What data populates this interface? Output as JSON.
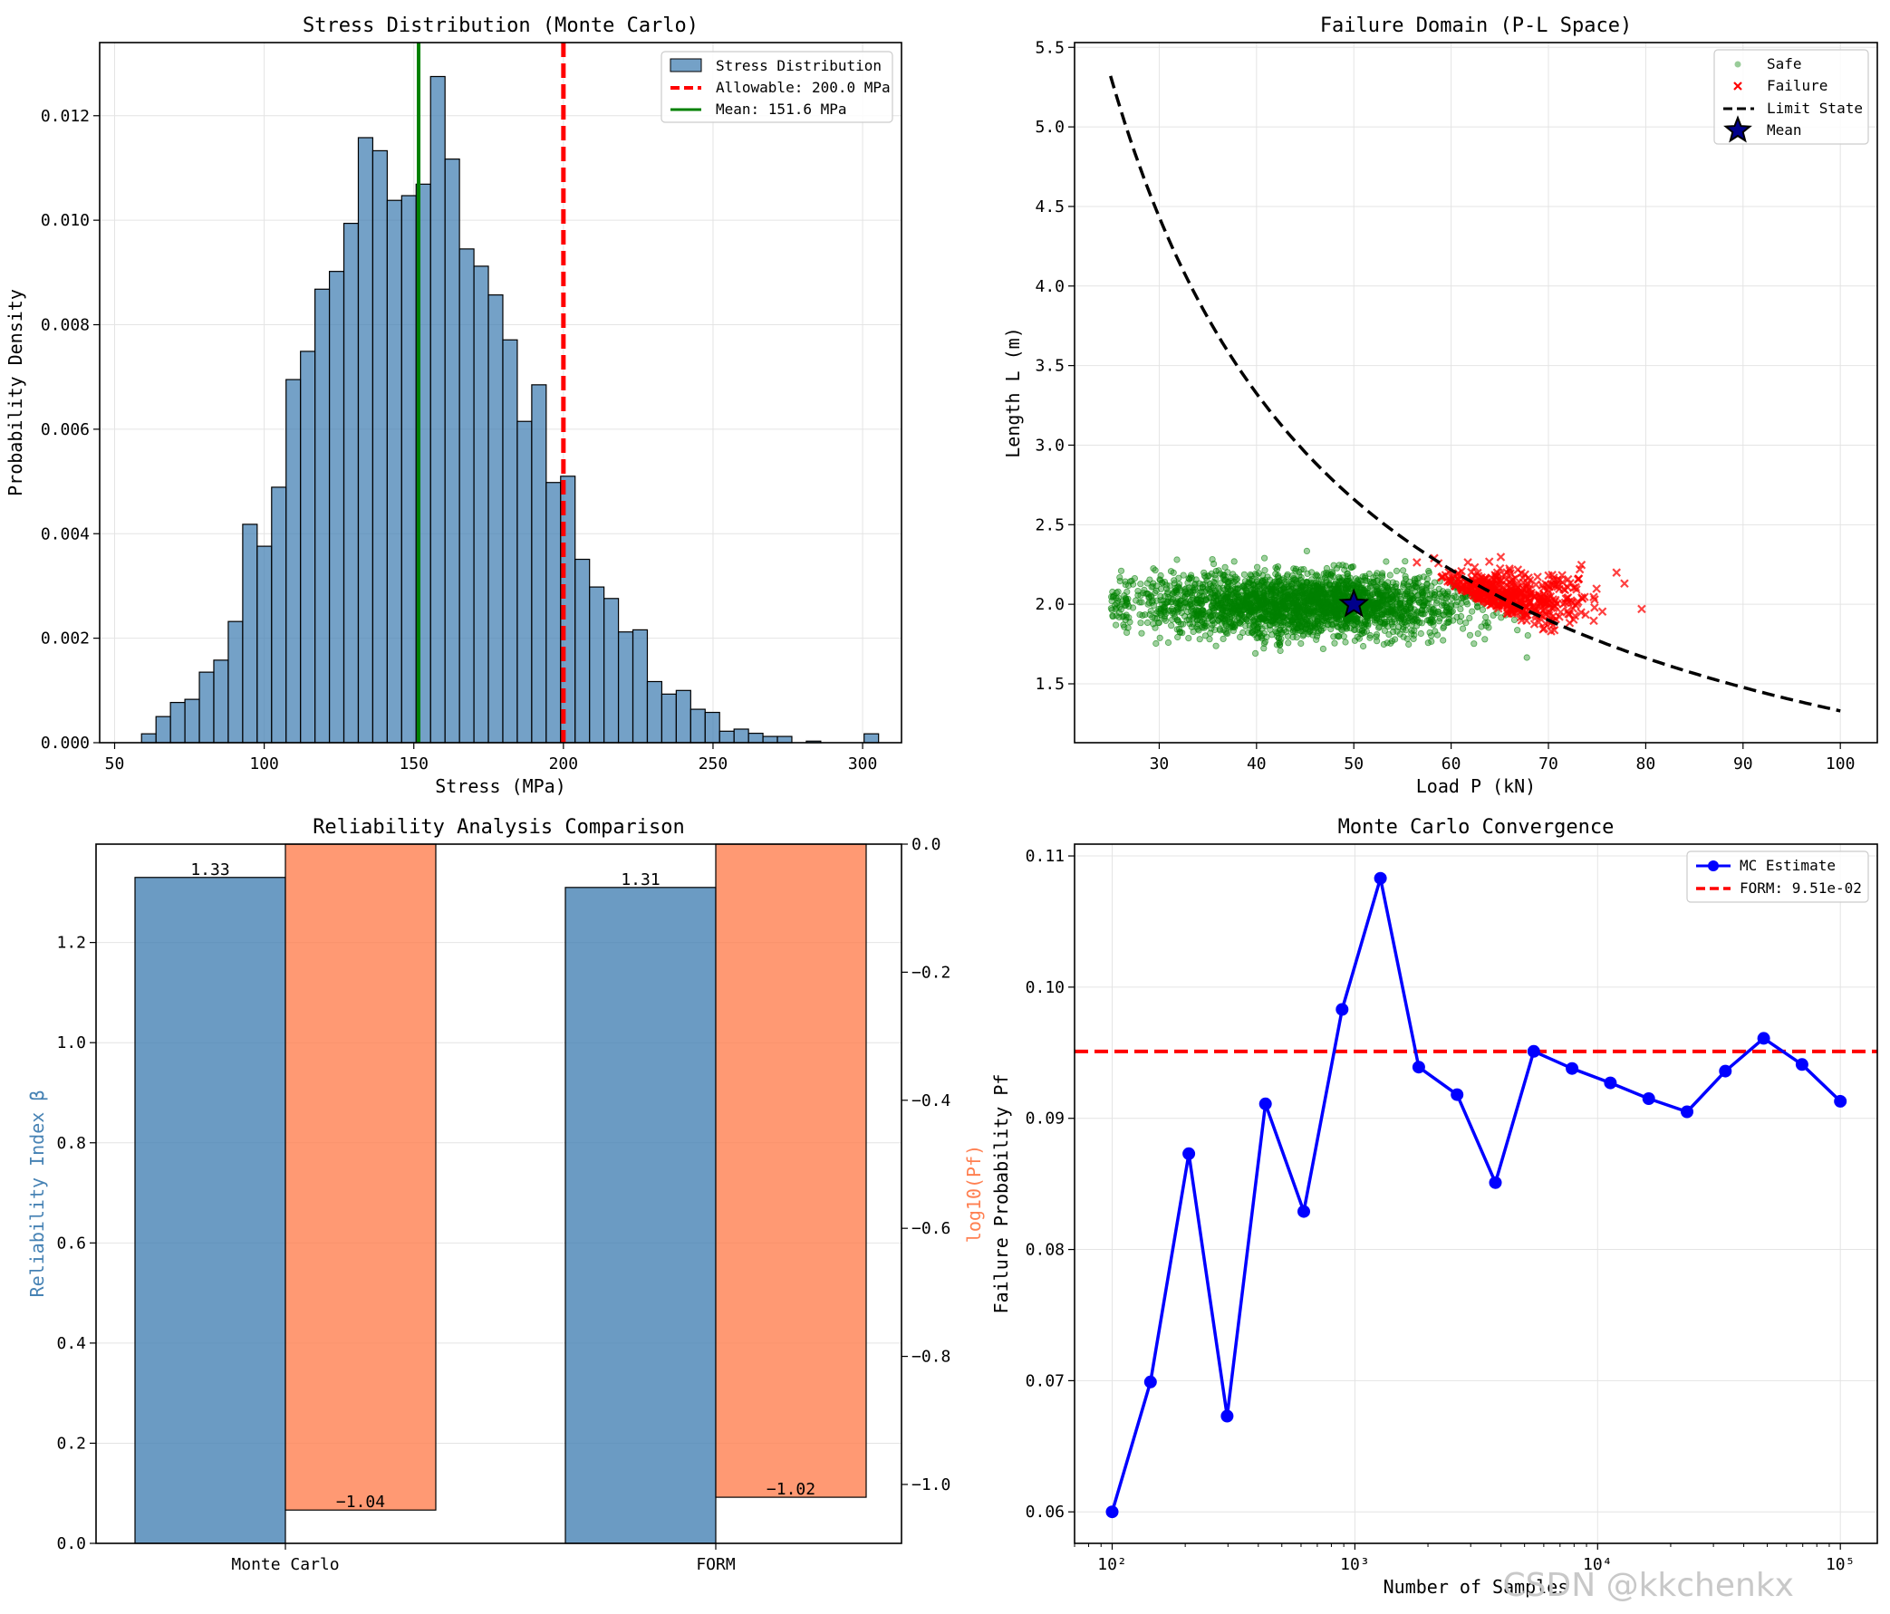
{
  "watermark": "CSDN @kkchenkx",
  "chart_data": [
    {
      "type": "bar",
      "title": "Stress Distribution (Monte Carlo)",
      "xlabel": "Stress (MPa)",
      "ylabel": "Probability Density",
      "xlim": [
        45,
        313
      ],
      "ylim": [
        0,
        0.0134
      ],
      "xticks": [
        50,
        100,
        150,
        200,
        250,
        300
      ],
      "yticks": [
        0.0,
        0.002,
        0.004,
        0.006,
        0.008,
        0.01,
        0.012
      ],
      "grid": true,
      "legend_position": "top-right",
      "bin_start": 59,
      "bin_width": 4.83,
      "values": [
        0.00017,
        0.0005,
        0.00077,
        0.00083,
        0.00135,
        0.00158,
        0.00232,
        0.00418,
        0.00376,
        0.00489,
        0.00695,
        0.00749,
        0.00868,
        0.00902,
        0.00994,
        0.01158,
        0.01133,
        0.01038,
        0.01047,
        0.01069,
        0.01275,
        0.01117,
        0.00945,
        0.00912,
        0.00857,
        0.00771,
        0.00615,
        0.00685,
        0.00498,
        0.0051,
        0.00351,
        0.00298,
        0.00276,
        0.00212,
        0.00216,
        0.00117,
        0.00093,
        0.001,
        0.00064,
        0.00058,
        0.00022,
        0.00026,
        0.00018,
        0.00012,
        0.00012,
        0.0,
        3e-05,
        0.0,
        0.0,
        0.0,
        0.00017
      ],
      "series": [
        {
          "name": "Stress Distribution",
          "color": "#4682b4"
        },
        {
          "name": "Allowable: 200.0 MPa",
          "x": 200.0,
          "color": "#ff0000"
        },
        {
          "name": "Mean: 151.6 MPa",
          "x": 151.6,
          "color": "#008000"
        }
      ]
    },
    {
      "type": "scatter",
      "title": "Failure Domain (P-L Space)",
      "xlabel": "Load P (kN)",
      "ylabel": "Length L (m)",
      "xlim": [
        21.3,
        103.8
      ],
      "ylim": [
        1.13,
        5.53
      ],
      "xticks": [
        30,
        40,
        50,
        60,
        70,
        80,
        90,
        100
      ],
      "yticks": [
        1.5,
        2.0,
        2.5,
        3.0,
        3.5,
        4.0,
        4.5,
        5.0,
        5.5
      ],
      "grid": true,
      "legend_position": "top-right",
      "point_sample": {
        "safe_P_mean": 45,
        "safe_P_sd": 8.5,
        "safe_L_mean": 2.0,
        "safe_L_sd": 0.1,
        "failure_P_mean": 62,
        "failure_P_sd": 5.5,
        "failure_L_mean": 2.02,
        "failure_L_sd": 0.09
      },
      "limit_state": {
        "x_from": 25,
        "x_to": 100,
        "k": 133
      },
      "mean_point": {
        "P": 50,
        "L": 2.0
      },
      "series": [
        {
          "name": "Safe",
          "color": "#008000"
        },
        {
          "name": "Failure",
          "color": "#ff0000"
        },
        {
          "name": "Limit State",
          "color": "#000000"
        },
        {
          "name": "Mean",
          "color": "#00008b"
        }
      ]
    },
    {
      "type": "bar",
      "title": "Reliability Analysis Comparison",
      "categories": [
        "Monte Carlo",
        "FORM"
      ],
      "ylabel_left": "Reliability Index β",
      "ylabel_right": "log10(Pf)",
      "ylim_left": [
        0,
        1.3965
      ],
      "ylim_right": [
        -1.092,
        0.0
      ],
      "yticks_left": [
        0.0,
        0.2,
        0.4,
        0.6,
        0.8,
        1.0,
        1.2
      ],
      "yticks_right": [
        0.0,
        -0.2,
        -0.4,
        -0.6,
        -0.8,
        -1.0
      ],
      "grid": true,
      "series": [
        {
          "name": "Reliability Index β",
          "values": [
            1.33,
            1.31
          ],
          "labels": [
            "1.33",
            "1.31"
          ],
          "color": "#4682b4"
        },
        {
          "name": "log10(Pf)",
          "values": [
            -1.04,
            -1.02
          ],
          "labels": [
            "-1.04",
            "-1.02"
          ],
          "color": "#ff7f50"
        }
      ]
    },
    {
      "type": "line",
      "title": "Monte Carlo Convergence",
      "xlabel": "Number of Samples",
      "ylabel": "Failure Probability Pf",
      "xscale": "log",
      "xlim": [
        70,
        142000
      ],
      "ylim": [
        0.0576,
        0.1109
      ],
      "xticks": [
        100,
        1000,
        10000,
        100000
      ],
      "xtick_labels": [
        "10²",
        "10³",
        "10⁴",
        "10⁵"
      ],
      "yticks": [
        0.06,
        0.07,
        0.08,
        0.09,
        0.1,
        0.11
      ],
      "grid": true,
      "legend_position": "top-right",
      "x": [
        100,
        143.8,
        206.9,
        297.6,
        428.1,
        615.8,
        885.9,
        1274,
        1833,
        2637,
        3793,
        5456,
        7848,
        11288,
        16238,
        23357,
        33598,
        48329,
        69519,
        100000
      ],
      "series": [
        {
          "name": "MC Estimate",
          "color": "#0000ff",
          "values": [
            0.06,
            0.0699,
            0.0873,
            0.0673,
            0.0911,
            0.0829,
            0.0983,
            0.1083,
            0.0939,
            0.0918,
            0.0851,
            0.0951,
            0.0938,
            0.0927,
            0.0915,
            0.0905,
            0.0936,
            0.0961,
            0.0941,
            0.0913
          ]
        },
        {
          "name": "FORM: 9.51e-02",
          "y": 0.0951,
          "color": "#ff0000"
        }
      ]
    }
  ]
}
